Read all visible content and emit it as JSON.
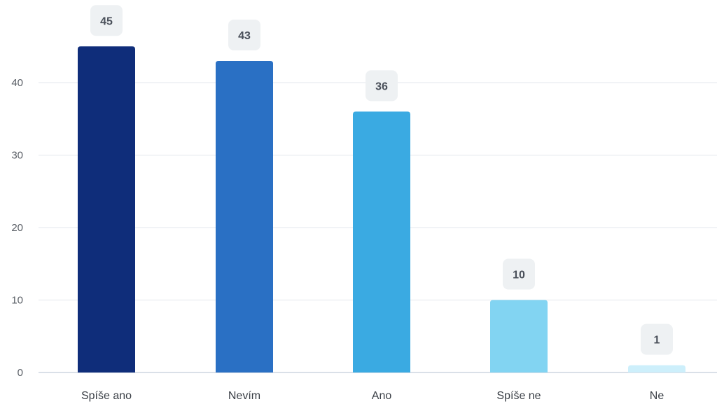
{
  "chart_data": {
    "type": "bar",
    "title": "",
    "xlabel": "",
    "ylabel": "",
    "categories": [
      "Spíše ano",
      "Nevím",
      "Ano",
      "Spíše ne",
      "Ne"
    ],
    "values": [
      45,
      43,
      36,
      10,
      1
    ],
    "data_labels": [
      "45",
      "43",
      "36",
      "10",
      "1"
    ],
    "y_ticks": [
      0,
      10,
      20,
      30,
      40
    ],
    "y_tick_labels": [
      "0",
      "10",
      "20",
      "30",
      "40"
    ],
    "ylim": [
      0,
      50
    ],
    "grid": true,
    "legend": "none",
    "colors": [
      "#0f2d7a",
      "#2a70c4",
      "#3aaae2",
      "#82d4f2",
      "#cdeffb"
    ]
  },
  "colors": {
    "grid": "#e3e7ec",
    "axis": "#cdd6e0",
    "badge": "#eef1f3"
  }
}
